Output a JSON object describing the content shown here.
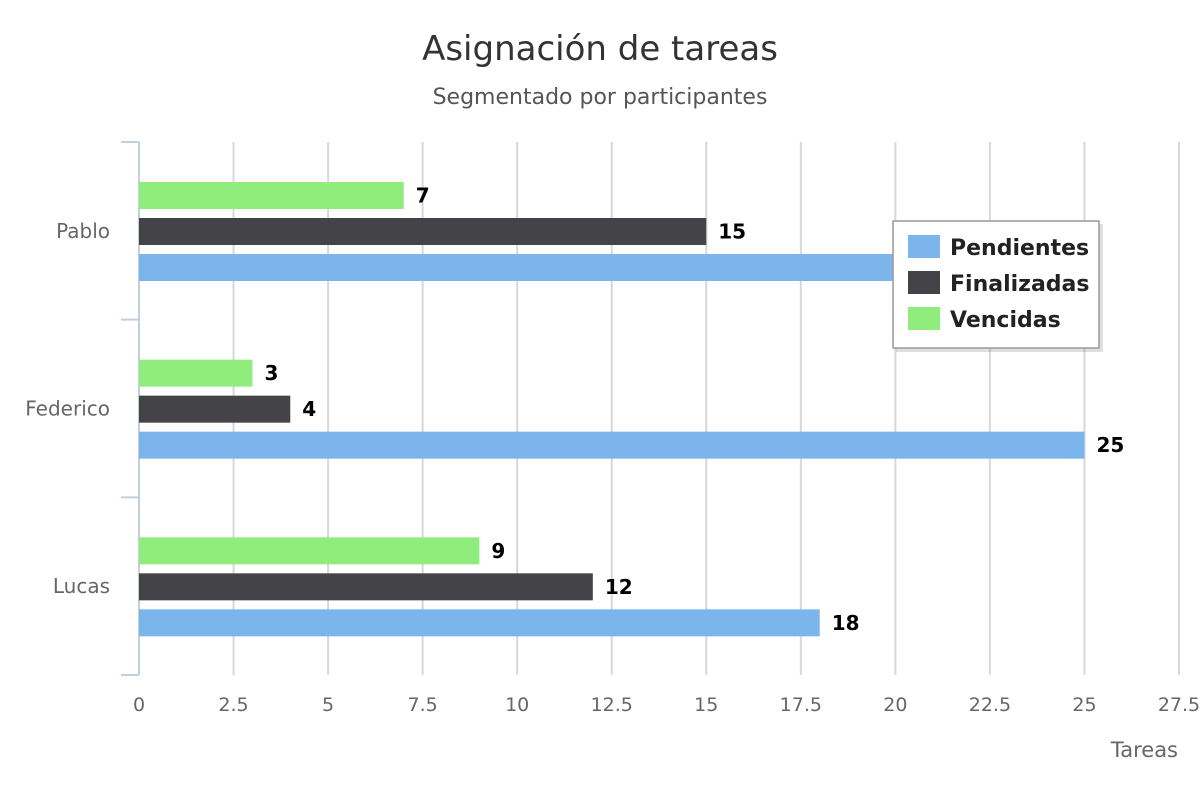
{
  "chart_data": {
    "type": "bar",
    "orientation": "horizontal",
    "title": "Asignación de tareas",
    "subtitle": "Segmentado por participantes",
    "xlabel": "Tareas",
    "ylabel": "",
    "categories": [
      "Pablo",
      "Federico",
      "Lucas"
    ],
    "series": [
      {
        "name": "Vencidas",
        "color": "#90ed7d",
        "values": [
          7,
          3,
          9
        ]
      },
      {
        "name": "Finalizadas",
        "color": "#434348",
        "values": [
          15,
          4,
          12
        ]
      },
      {
        "name": "Pendientes",
        "color": "#7cb5ec",
        "values": [
          20,
          25,
          18
        ]
      }
    ],
    "xlim": [
      0,
      27.5
    ],
    "ticks": [
      "0",
      "2.5",
      "5",
      "7.5",
      "10",
      "12.5",
      "15",
      "17.5",
      "20",
      "22.5",
      "25",
      "27.5"
    ],
    "grid": true,
    "data_labels": true,
    "legend": {
      "placement": "top-right",
      "items": [
        "Pendientes",
        "Finalizadas",
        "Vencidas"
      ]
    }
  }
}
